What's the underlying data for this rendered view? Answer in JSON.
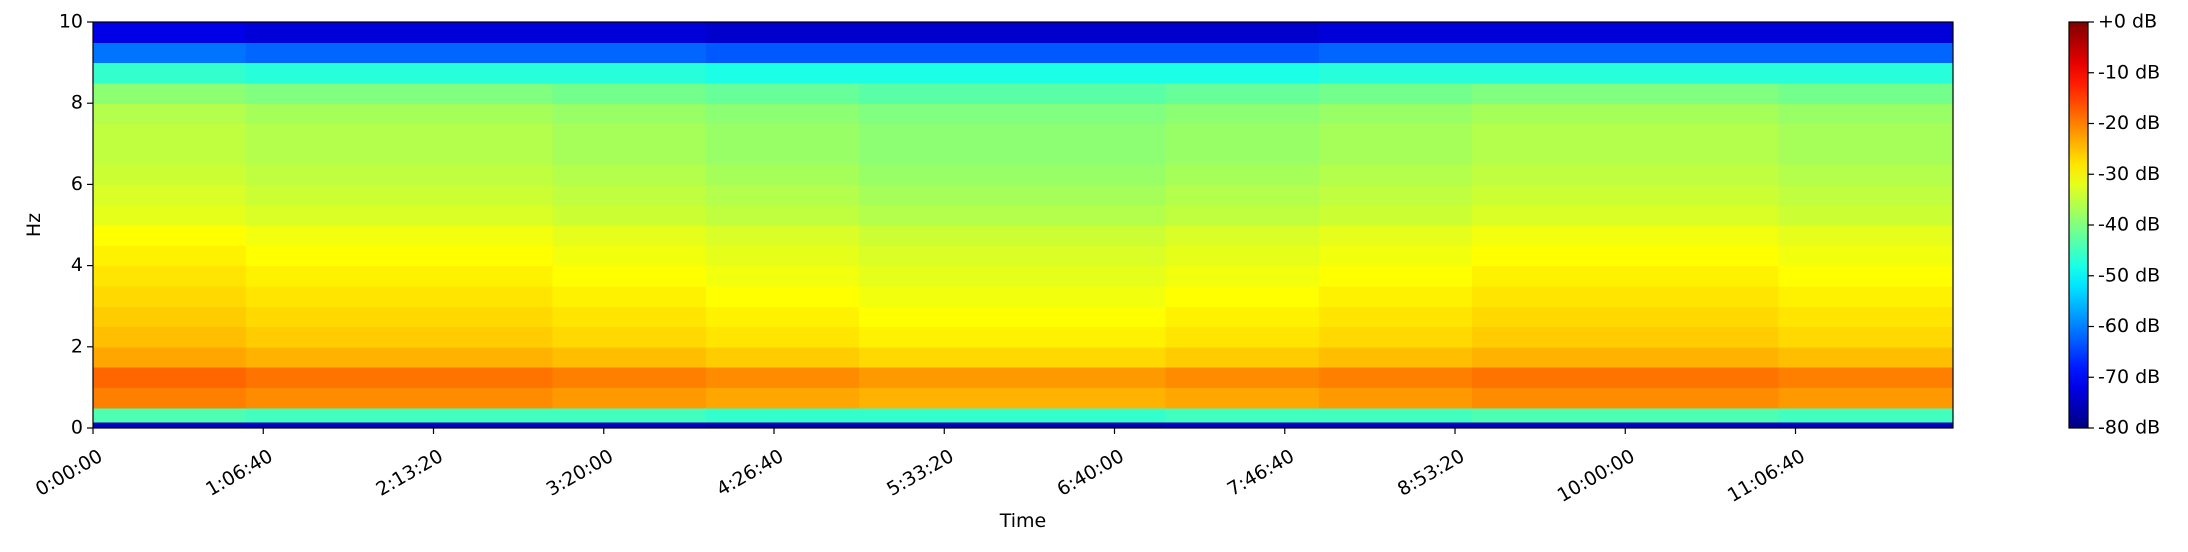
{
  "chart_data": {
    "type": "spectrogram",
    "xlabel": "Time",
    "ylabel": "Hz",
    "colormap": "jet",
    "xlim": [
      0,
      43700
    ],
    "ylim": [
      0,
      10
    ],
    "clim": [
      -80,
      0
    ],
    "xticks": [
      {
        "value": 0,
        "label": "0:00:00"
      },
      {
        "value": 4000,
        "label": "1:06:40"
      },
      {
        "value": 8000,
        "label": "2:13:20"
      },
      {
        "value": 12000,
        "label": "3:20:00"
      },
      {
        "value": 16000,
        "label": "4:26:40"
      },
      {
        "value": 20000,
        "label": "5:33:20"
      },
      {
        "value": 24000,
        "label": "6:40:00"
      },
      {
        "value": 28000,
        "label": "7:46:40"
      },
      {
        "value": 32000,
        "label": "8:53:20"
      },
      {
        "value": 36000,
        "label": "10:00:00"
      },
      {
        "value": 40000,
        "label": "11:06:40"
      }
    ],
    "yticks": [
      0,
      2,
      4,
      6,
      8,
      10
    ],
    "cticks": [
      {
        "value": 0,
        "label": "+0 dB"
      },
      {
        "value": -10,
        "label": "-10 dB"
      },
      {
        "value": -20,
        "label": "-20 dB"
      },
      {
        "value": -30,
        "label": "-30 dB"
      },
      {
        "value": -40,
        "label": "-40 dB"
      },
      {
        "value": -50,
        "label": "-50 dB"
      },
      {
        "value": -60,
        "label": "-60 dB"
      },
      {
        "value": -70,
        "label": "-70 dB"
      },
      {
        "value": -80,
        "label": "-80 dB"
      }
    ],
    "x_bins": [
      0,
      3600,
      7200,
      10800,
      14400,
      18000,
      21600,
      25200,
      28800,
      32400,
      36000,
      39600,
      43700
    ],
    "y_bins": [
      0,
      0.15,
      0.5,
      1,
      1.5,
      2,
      2.5,
      3,
      3.5,
      4,
      4.5,
      5,
      5.5,
      6,
      6.5,
      7,
      7.5,
      8,
      8.5,
      9,
      9.5,
      10
    ],
    "values": [
      [
        -75,
        -75,
        -75,
        -75,
        -76,
        -76,
        -76,
        -75,
        -75,
        -75,
        -75,
        -75
      ],
      [
        -44,
        -45,
        -45,
        -45,
        -46,
        -46,
        -46,
        -45,
        -45,
        -44,
        -44,
        -45
      ],
      [
        -20,
        -21,
        -21,
        -22,
        -23,
        -24,
        -24,
        -23,
        -22,
        -21,
        -21,
        -22
      ],
      [
        -18,
        -19,
        -19,
        -20,
        -21,
        -22,
        -22,
        -21,
        -20,
        -19,
        -19,
        -20
      ],
      [
        -23,
        -24,
        -24,
        -25,
        -26,
        -27,
        -27,
        -26,
        -25,
        -24,
        -24,
        -25
      ],
      [
        -25,
        -26,
        -26,
        -27,
        -28,
        -29,
        -29,
        -28,
        -27,
        -26,
        -26,
        -27
      ],
      [
        -26,
        -27,
        -27,
        -28,
        -29,
        -30,
        -30,
        -29,
        -28,
        -27,
        -27,
        -28
      ],
      [
        -27,
        -28,
        -28,
        -29,
        -30,
        -31,
        -31,
        -30,
        -29,
        -28,
        -28,
        -29
      ],
      [
        -28,
        -29,
        -29,
        -30,
        -31,
        -32,
        -32,
        -31,
        -30,
        -29,
        -29,
        -30
      ],
      [
        -29,
        -30,
        -30,
        -31,
        -32,
        -33,
        -33,
        -32,
        -31,
        -30,
        -30,
        -31
      ],
      [
        -30,
        -31,
        -31,
        -32,
        -33,
        -34,
        -34,
        -33,
        -32,
        -31,
        -31,
        -32
      ],
      [
        -32,
        -33,
        -33,
        -34,
        -35,
        -36,
        -36,
        -35,
        -34,
        -33,
        -33,
        -34
      ],
      [
        -33,
        -34,
        -34,
        -35,
        -36,
        -37,
        -37,
        -36,
        -35,
        -34,
        -34,
        -35
      ],
      [
        -34,
        -35,
        -35,
        -36,
        -37,
        -38,
        -38,
        -37,
        -36,
        -35,
        -35,
        -36
      ],
      [
        -35,
        -36,
        -36,
        -37,
        -38,
        -39,
        -39,
        -38,
        -37,
        -36,
        -36,
        -37
      ],
      [
        -35,
        -36,
        -36,
        -37,
        -38,
        -39,
        -39,
        -38,
        -37,
        -36,
        -36,
        -37
      ],
      [
        -36,
        -37,
        -37,
        -38,
        -39,
        -40,
        -40,
        -39,
        -38,
        -37,
        -37,
        -38
      ],
      [
        -39,
        -40,
        -40,
        -41,
        -42,
        -43,
        -43,
        -42,
        -41,
        -40,
        -40,
        -41
      ],
      [
        -46,
        -47,
        -47,
        -47,
        -48,
        -48,
        -48,
        -48,
        -47,
        -47,
        -47,
        -47
      ],
      [
        -61,
        -62,
        -62,
        -62,
        -63,
        -63,
        -63,
        -63,
        -62,
        -62,
        -62,
        -62
      ],
      [
        -72,
        -73,
        -73,
        -73,
        -74,
        -74,
        -74,
        -74,
        -73,
        -73,
        -73,
        -73
      ]
    ]
  }
}
